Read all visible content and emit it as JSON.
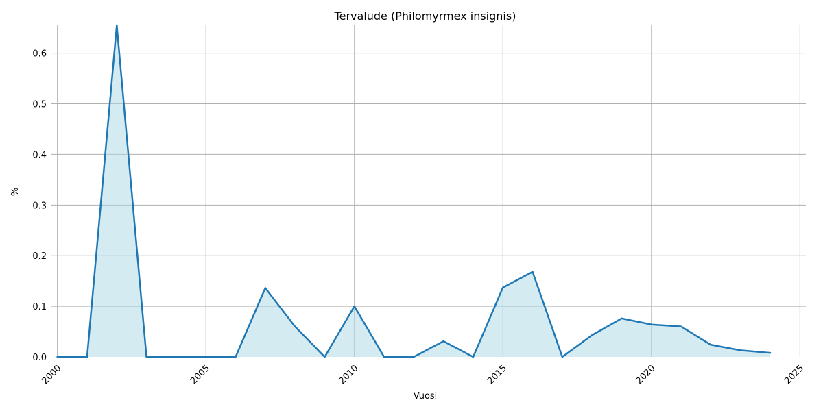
{
  "chart_data": {
    "type": "area",
    "title": "Tervalude (Philomyrmex insignis)",
    "xlabel": "Vuosi",
    "ylabel": "%",
    "x": [
      2000,
      2001,
      2002,
      2003,
      2004,
      2005,
      2006,
      2007,
      2008,
      2009,
      2010,
      2011,
      2012,
      2013,
      2014,
      2015,
      2016,
      2017,
      2018,
      2019,
      2020,
      2021,
      2022,
      2023,
      2024
    ],
    "series": [
      {
        "values": [
          0,
          0,
          0.655,
          0,
          0,
          0,
          0,
          0.136,
          0.06,
          0,
          0.1,
          0,
          0,
          0.031,
          0,
          0.137,
          0.168,
          0,
          0.043,
          0.076,
          0.064,
          0.06,
          0.024,
          0.013,
          0.008
        ]
      }
    ],
    "xlim": [
      1999.8,
      2025.2
    ],
    "ylim": [
      0,
      0.655
    ],
    "xticks": [
      "2000",
      "2005",
      "2010",
      "2015",
      "2020",
      "2025"
    ],
    "yticks": [
      "0.0",
      "0.1",
      "0.2",
      "0.3",
      "0.4",
      "0.5",
      "0.6"
    ],
    "grid": true,
    "legend": false,
    "colors": {
      "line": "#1f77b4",
      "fill": "#add8e6"
    }
  }
}
